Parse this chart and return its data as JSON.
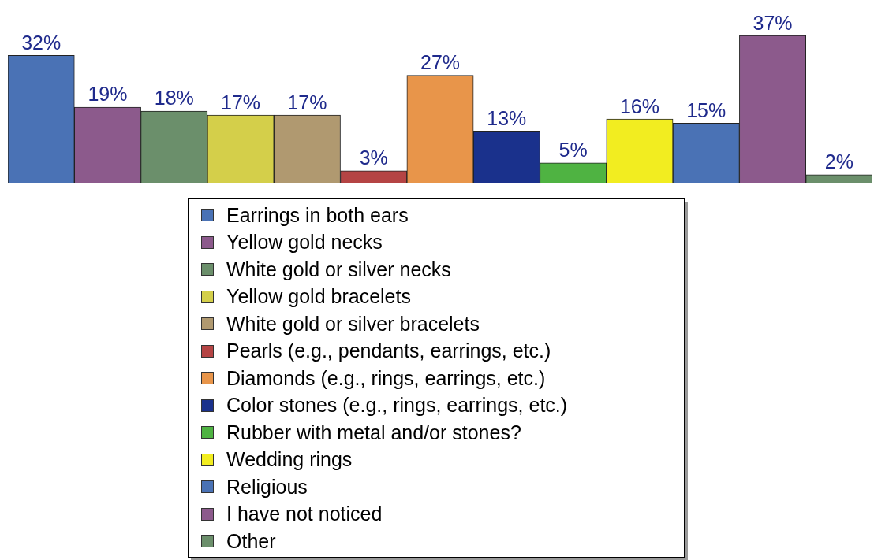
{
  "chart_data": {
    "type": "bar",
    "categories": [
      null
    ],
    "legend": "bottom",
    "grid": false,
    "tick_labels": false,
    "series": [
      {
        "name": "Earrings in both ears",
        "color": "#4a72b5",
        "values": [
          32
        ],
        "value_labels": [
          "32%"
        ]
      },
      {
        "name": "Yellow gold necks",
        "color": "#8c5a8c",
        "values": [
          19
        ],
        "value_labels": [
          "19%"
        ]
      },
      {
        "name": "White gold or silver necks",
        "color": "#6b8f6b",
        "values": [
          18
        ],
        "value_labels": [
          "18%"
        ]
      },
      {
        "name": "Yellow gold bracelets",
        "color": "#d4cf4a",
        "values": [
          17
        ],
        "value_labels": [
          "17%"
        ]
      },
      {
        "name": "White gold or silver bracelets",
        "color": "#b09970",
        "values": [
          17
        ],
        "value_labels": [
          "17%"
        ]
      },
      {
        "name": "Pearls (e.g., pendants, earrings, etc.)",
        "color": "#b54444",
        "values": [
          3
        ],
        "value_labels": [
          "3%"
        ]
      },
      {
        "name": "Diamonds (e.g., rings, earrings, etc.)",
        "color": "#e8954a",
        "values": [
          27
        ],
        "value_labels": [
          "27%"
        ]
      },
      {
        "name": "Color stones (e.g., rings, earrings, etc.)",
        "color": "#1a318c",
        "values": [
          13
        ],
        "value_labels": [
          "13%"
        ]
      },
      {
        "name": "Rubber with metal and/or stones?",
        "color": "#4fb342",
        "values": [
          5
        ],
        "value_labels": [
          "5%"
        ]
      },
      {
        "name": "Wedding rings",
        "color": "#f2ed20",
        "values": [
          16
        ],
        "value_labels": [
          "16%"
        ]
      },
      {
        "name": "Religious",
        "color": "#4a72b5",
        "values": [
          15
        ],
        "value_labels": [
          "15%"
        ]
      },
      {
        "name": "I have not noticed",
        "color": "#8c5a8c",
        "values": [
          37
        ],
        "value_labels": [
          "37%"
        ]
      },
      {
        "name": "Other",
        "color": "#6b8f6b",
        "values": [
          2
        ],
        "value_labels": [
          "2%"
        ]
      }
    ]
  }
}
